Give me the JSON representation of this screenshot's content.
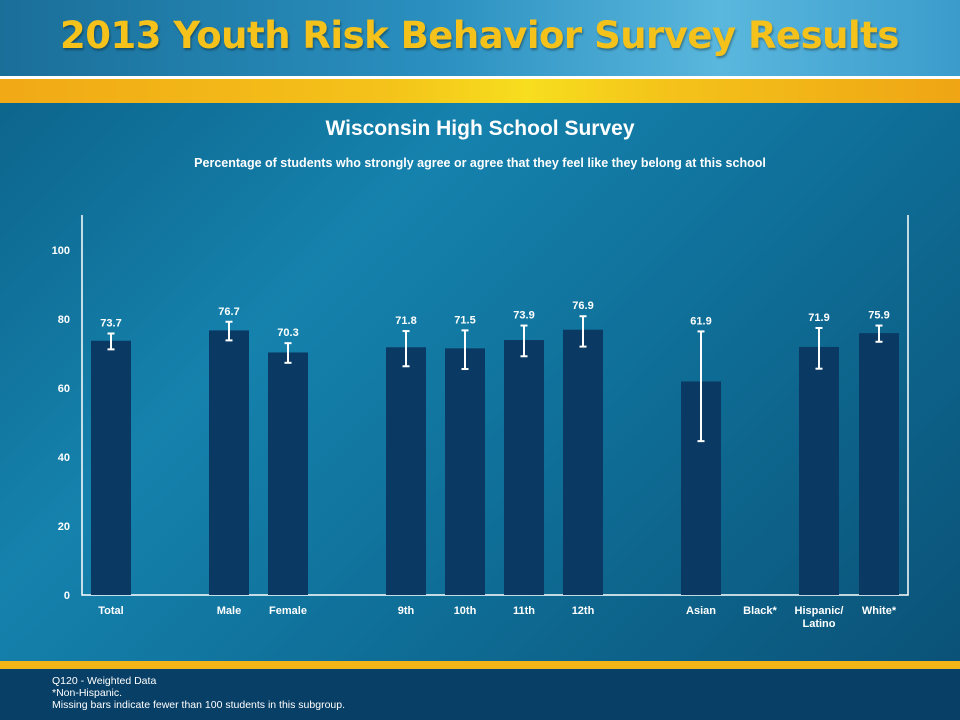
{
  "header": {
    "title": "2013 Youth Risk Behavior Survey Results"
  },
  "chart_data": {
    "type": "bar",
    "title": "Wisconsin High School Survey",
    "subtitle": "Percentage of students who strongly agree or agree that they feel like they belong at this school",
    "categories": [
      "Total",
      "Male",
      "Female",
      "9th",
      "10th",
      "11th",
      "12th",
      "Asian",
      "Black*",
      "Hispanic/ Latino",
      "White*"
    ],
    "values": [
      73.7,
      76.7,
      70.3,
      71.8,
      71.5,
      73.9,
      76.9,
      61.9,
      null,
      71.9,
      75.9
    ],
    "error_low": [
      71.2,
      73.8,
      67.3,
      66.3,
      65.5,
      69.2,
      72.0,
      44.6,
      null,
      65.6,
      73.4
    ],
    "error_high": [
      75.8,
      79.2,
      73.0,
      76.5,
      76.7,
      78.1,
      80.8,
      76.4,
      null,
      77.4,
      78.1
    ],
    "value_labels": [
      "73.7",
      "76.7",
      "70.3",
      "71.8",
      "71.5",
      "73.9",
      "76.9",
      "61.9",
      "",
      "71.9",
      "75.9"
    ],
    "yticks": [
      "0",
      "20",
      "40",
      "60",
      "80",
      "100"
    ],
    "ylim": [
      0,
      110
    ],
    "xlabel": "",
    "ylabel": "",
    "grid": false,
    "colors": {
      "bar": "#0a3a63",
      "error_bar": "#ffffff",
      "label": "#ffffff",
      "frame": "#ffffff"
    }
  },
  "footer": {
    "lines": [
      "Q120 - Weighted Data",
      "*Non-Hispanic.",
      "Missing bars indicate fewer than 100 students in this subgroup."
    ]
  }
}
